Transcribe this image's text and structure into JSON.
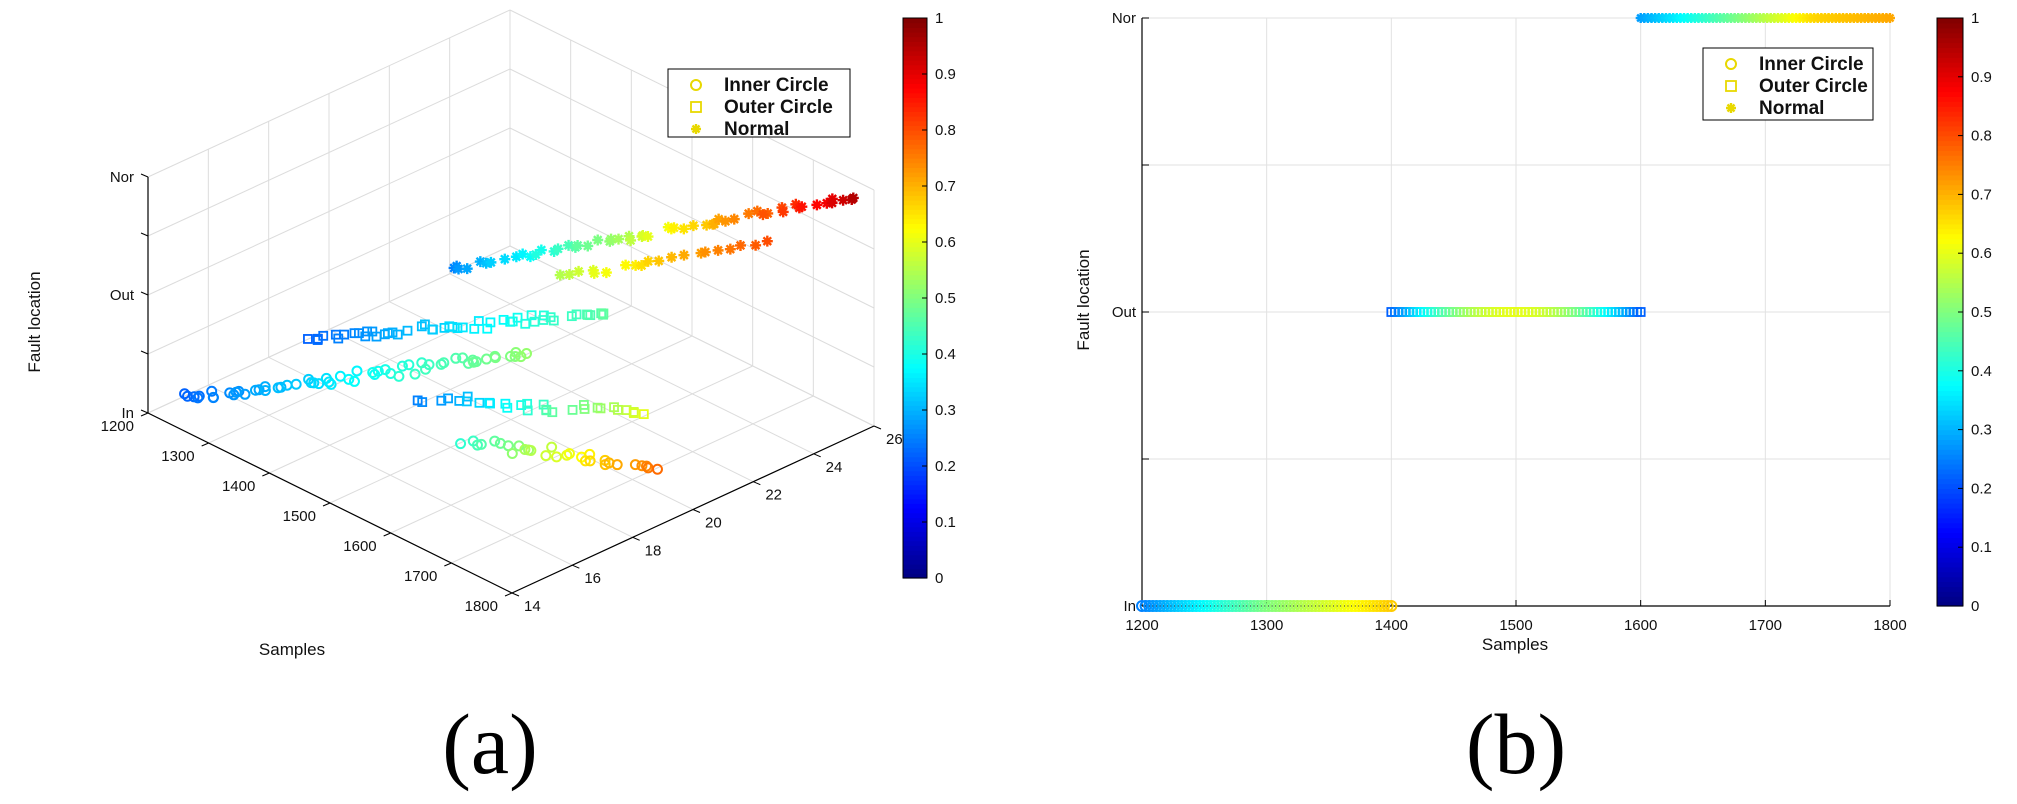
{
  "chart_data": [
    {
      "type": "scatter",
      "projection": "3d",
      "panel_label": "(a)",
      "xlabel": "Samples",
      "ylabel": "",
      "zlabel": "Fault location",
      "xlim": [
        1200,
        1800
      ],
      "ylim": [
        14,
        26
      ],
      "x_ticks": [
        "1200",
        "1300",
        "1400",
        "1500",
        "1600",
        "1700",
        "1800"
      ],
      "y_ticks": [
        "14",
        "16",
        "18",
        "20",
        "22",
        "24",
        "26"
      ],
      "z_ticks": [
        "In",
        "Out",
        "Nor"
      ],
      "grid": true,
      "legend": {
        "placement": "top-right",
        "entries": [
          "Inner Circle",
          "Outer Circle",
          "Normal"
        ]
      },
      "colorbar": {
        "colormap": "jet",
        "range": [
          0,
          1
        ],
        "ticks": [
          "0",
          "0.1",
          "0.2",
          "0.3",
          "0.4",
          "0.5",
          "0.6",
          "0.7",
          "0.8",
          "0.9",
          "1"
        ]
      },
      "series": [
        {
          "name": "Inner Circle",
          "marker": "circle",
          "z": "In",
          "x_range": [
            1200,
            1400
          ],
          "depth_range": [
            15,
            22
          ],
          "count": 50
        },
        {
          "name": "Outer Circle",
          "marker": "square",
          "z": "Out",
          "x_range": [
            1400,
            1600
          ],
          "depth_range": [
            15,
            22
          ],
          "count": 45
        },
        {
          "name": "Normal",
          "marker": "star",
          "z": "Nor",
          "x_range": [
            1600,
            1800
          ],
          "depth_range": [
            16,
            26
          ],
          "count": 45
        }
      ]
    },
    {
      "type": "scatter",
      "panel_label": "(b)",
      "xlabel": "Samples",
      "ylabel": "Fault location",
      "xlim": [
        1200,
        1800
      ],
      "x_ticks": [
        "1200",
        "1300",
        "1400",
        "1500",
        "1600",
        "1700",
        "1800"
      ],
      "y_ticks": [
        "In",
        "Out",
        "Nor"
      ],
      "grid": true,
      "legend": {
        "placement": "top-right",
        "entries": [
          "Inner Circle",
          "Outer Circle",
          "Normal"
        ]
      },
      "colorbar": {
        "colormap": "jet",
        "range": [
          0,
          1
        ],
        "ticks": [
          "0",
          "0.1",
          "0.2",
          "0.3",
          "0.4",
          "0.5",
          "0.6",
          "0.7",
          "0.8",
          "0.9",
          "1"
        ]
      },
      "series": [
        {
          "name": "Inner Circle",
          "marker": "circle",
          "y": "In",
          "x_range": [
            1200,
            1400
          ],
          "count": 60
        },
        {
          "name": "Outer Circle",
          "marker": "square",
          "y": "Out",
          "x_range": [
            1400,
            1600
          ],
          "count": 60
        },
        {
          "name": "Normal",
          "marker": "star",
          "y": "Nor",
          "x_range": [
            1600,
            1800
          ],
          "count": 60
        }
      ]
    }
  ]
}
